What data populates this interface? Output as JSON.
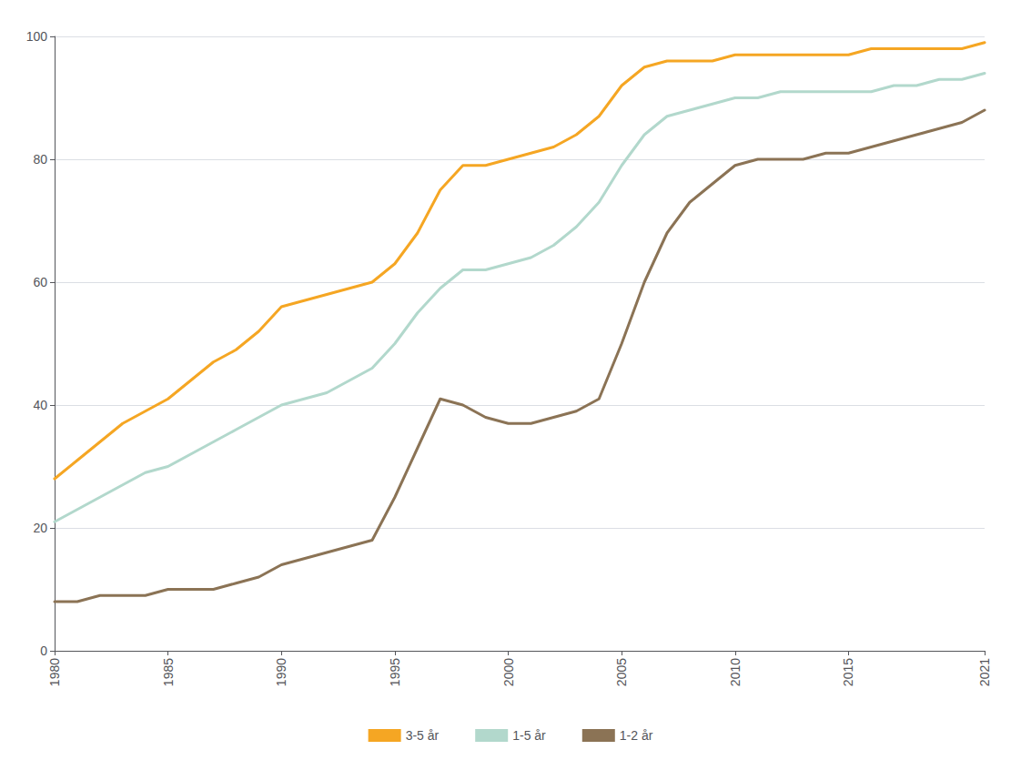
{
  "chart_data": {
    "type": "line",
    "x": [
      1980,
      1981,
      1982,
      1983,
      1984,
      1985,
      1986,
      1987,
      1988,
      1989,
      1990,
      1991,
      1992,
      1993,
      1994,
      1995,
      1996,
      1997,
      1998,
      1999,
      2000,
      2001,
      2002,
      2003,
      2004,
      2005,
      2006,
      2007,
      2008,
      2009,
      2010,
      2011,
      2012,
      2013,
      2014,
      2015,
      2016,
      2017,
      2018,
      2019,
      2020,
      2021
    ],
    "series": [
      {
        "name": "3-5 år",
        "color": "#F5A623",
        "values": [
          28,
          31,
          34,
          37,
          39,
          41,
          44,
          47,
          49,
          52,
          56,
          57,
          58,
          59,
          60,
          63,
          68,
          75,
          79,
          79,
          80,
          81,
          82,
          84,
          87,
          92,
          95,
          96,
          96,
          96,
          97,
          97,
          97,
          97,
          97,
          97,
          98,
          98,
          98,
          98,
          98,
          99
        ]
      },
      {
        "name": "1-5 år",
        "color": "#B2D8CC",
        "values": [
          21,
          23,
          25,
          27,
          29,
          30,
          32,
          34,
          36,
          38,
          40,
          41,
          42,
          44,
          46,
          50,
          55,
          59,
          62,
          62,
          63,
          64,
          66,
          69,
          73,
          79,
          84,
          87,
          88,
          89,
          90,
          90,
          91,
          91,
          91,
          91,
          91,
          92,
          92,
          93,
          93,
          94
        ]
      },
      {
        "name": "1-2 år",
        "color": "#8B7355",
        "values": [
          8,
          8,
          9,
          9,
          9,
          10,
          10,
          10,
          11,
          12,
          14,
          15,
          16,
          17,
          18,
          25,
          33,
          41,
          40,
          38,
          37,
          37,
          38,
          39,
          41,
          50,
          60,
          68,
          73,
          76,
          79,
          80,
          80,
          80,
          81,
          81,
          82,
          83,
          84,
          85,
          86,
          88
        ]
      }
    ],
    "xlim": [
      1980,
      2021
    ],
    "xticks": [
      1980,
      1985,
      1990,
      1995,
      2000,
      2005,
      2010,
      2015,
      2021
    ],
    "ylim": [
      0,
      100
    ],
    "yticks": [
      0,
      20,
      40,
      60,
      80,
      100
    ],
    "grid": true,
    "legend": "bottom"
  }
}
